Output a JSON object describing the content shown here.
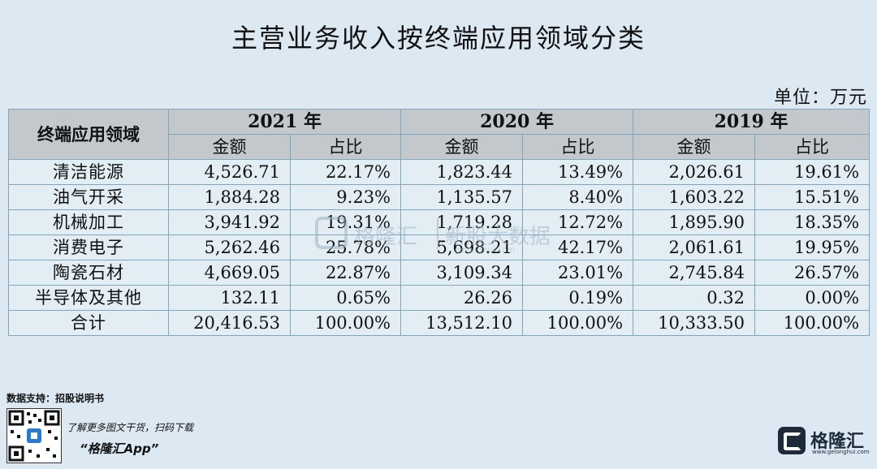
{
  "title": "主营业务收入按终端应用领域分类",
  "unit": "单位：万元",
  "table": {
    "row_header": "终端应用领域",
    "years": [
      "2021 年",
      "2020 年",
      "2019 年"
    ],
    "sub_headers": [
      "金额",
      "占比"
    ],
    "rows": [
      {
        "category": "清洁能源",
        "values": [
          "4,526.71",
          "22.17%",
          "1,823.44",
          "13.49%",
          "2,026.61",
          "19.61%"
        ]
      },
      {
        "category": "油气开采",
        "values": [
          "1,884.28",
          "9.23%",
          "1,135.57",
          "8.40%",
          "1,603.22",
          "15.51%"
        ]
      },
      {
        "category": "机械加工",
        "values": [
          "3,941.92",
          "19.31%",
          "1,719.28",
          "12.72%",
          "1,895.90",
          "18.35%"
        ]
      },
      {
        "category": "消费电子",
        "values": [
          "5,262.46",
          "25.78%",
          "5,698.21",
          "42.17%",
          "2,061.61",
          "19.95%"
        ]
      },
      {
        "category": "陶瓷石材",
        "values": [
          "4,669.05",
          "22.87%",
          "3,109.34",
          "23.01%",
          "2,745.84",
          "26.57%"
        ]
      },
      {
        "category": "半导体及其他",
        "values": [
          "132.11",
          "0.65%",
          "26.26",
          "0.19%",
          "0.32",
          "0.00%"
        ]
      },
      {
        "category": "合计",
        "values": [
          "20,416.53",
          "100.00%",
          "13,512.10",
          "100.00%",
          "10,333.50",
          "100.00%"
        ]
      }
    ]
  },
  "watermark": {
    "brand": "格隆汇",
    "sub": "新股大数据",
    "url": "gelonghui.com"
  },
  "footer": {
    "source": "数据支持：招股说明书",
    "qr_caption": "了解更多图文干货，扫码下载",
    "app_name": "“格隆汇App”",
    "brand_name": "格隆汇",
    "brand_url": "www.gelonghui.com"
  },
  "colors": {
    "background": "#dde9f2",
    "header": "#c2c8cc",
    "border": "#7fa6bd"
  }
}
